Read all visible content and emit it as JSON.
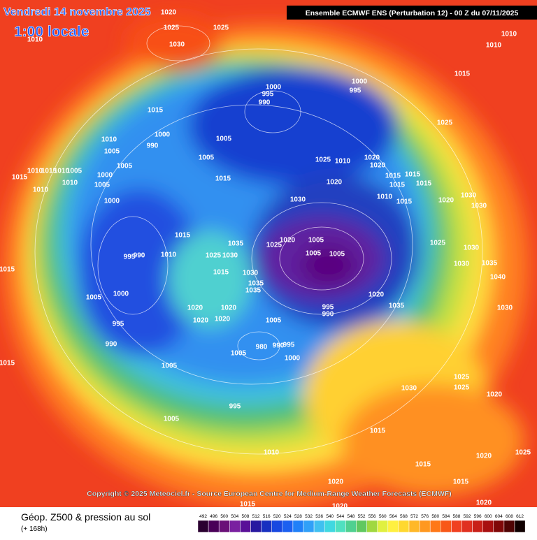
{
  "header": {
    "date": "Vendredi 14 novembre 2025",
    "local_time": "1:00 locale",
    "model": "Ensemble ECMWF ENS  (Perturbation 12)  -  00 Z du 07/11/2025"
  },
  "copyright": "Copyright © 2025 Meteociel.fr - Source European Centre for Medium-Range Weather Forecasts (ECMWF)",
  "footer": {
    "title": "Géop. Z500 & pression au sol",
    "lead": "(+ 168h)"
  },
  "colorbar": {
    "values": [
      492,
      496,
      500,
      504,
      508,
      512,
      516,
      520,
      524,
      528,
      532,
      536,
      540,
      544,
      548,
      552,
      556,
      560,
      564,
      568,
      572,
      576,
      580,
      584,
      588,
      592,
      596,
      600,
      604,
      608,
      612
    ],
    "colors": [
      "#2a0030",
      "#4a0058",
      "#6a1078",
      "#7a20a0",
      "#5a1098",
      "#2818a0",
      "#1830c0",
      "#1848e0",
      "#1c60f0",
      "#2080f8",
      "#30a0f8",
      "#40c0f0",
      "#40d8e0",
      "#50e0c0",
      "#50d090",
      "#60c860",
      "#a0d840",
      "#e0f040",
      "#fff040",
      "#ffd830",
      "#ffb828",
      "#ff9820",
      "#ff7818",
      "#f85818",
      "#f04020",
      "#e03020",
      "#c82018",
      "#a81010",
      "#800808",
      "#500404",
      "#100000"
    ]
  },
  "isobar_labels": [
    1020,
    1025,
    1025,
    1030,
    1010,
    1010,
    1010,
    1015,
    1000,
    995,
    1000,
    995,
    990,
    1015,
    1025,
    1010,
    1000,
    990,
    1005,
    1005,
    1005,
    1005,
    1025,
    1010,
    1020,
    1020,
    1010,
    1015,
    1010,
    1005,
    1000,
    1015,
    1010,
    1005,
    1015,
    1020,
    1015,
    1015,
    1015,
    1015,
    1010,
    1000,
    1010,
    1030,
    1030,
    1030,
    1015,
    1020,
    1015,
    1035,
    1025,
    1030,
    1025,
    1020,
    1005,
    1005,
    1005,
    995,
    990,
    1010,
    1025,
    1015,
    1030,
    1035,
    1035,
    1005,
    1000,
    1020,
    1020,
    1020,
    1035,
    995,
    990,
    1020,
    1020,
    1005,
    995,
    1015,
    990,
    980,
    990,
    995,
    1005,
    1000,
    1015,
    1005,
    1030,
    1025,
    1025,
    1020,
    995,
    1005,
    1015,
    1010,
    1015,
    1025,
    1020,
    1015,
    1020,
    1015,
    1020,
    1020,
    1030,
    1030,
    1035,
    1040,
    1030
  ]
}
